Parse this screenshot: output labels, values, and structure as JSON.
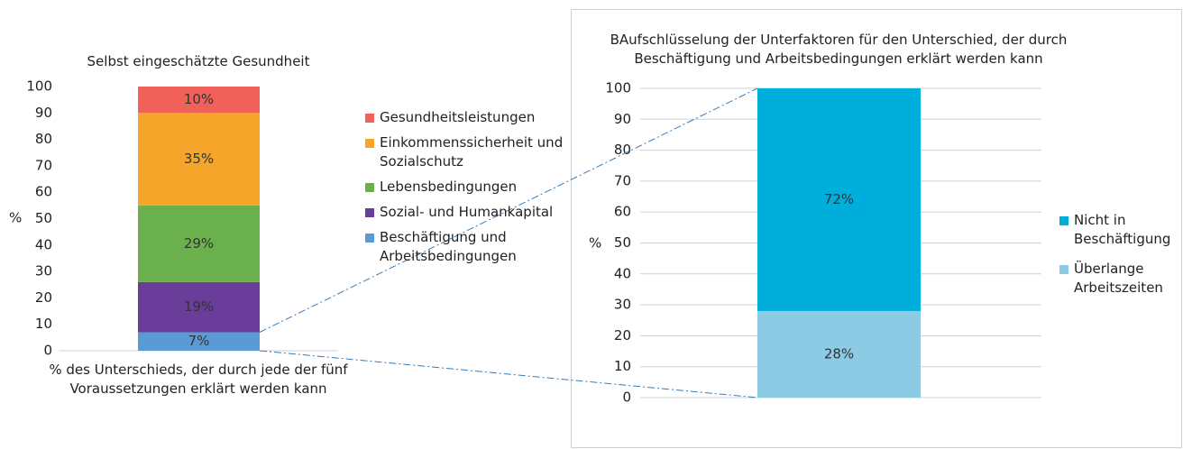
{
  "chart_data": [
    {
      "type": "stacked_bar",
      "title": "Selbst eingeschätzte Gesundheit",
      "y_label": "%",
      "x_label": "% des Unterschieds, der durch jede der fünf Voraussetzungen erklärt werden kann",
      "categories": [
        null
      ],
      "series": [
        {
          "name": "Beschäftigung und Arbeitsbedingungen",
          "color": "#5b9bd5",
          "values": [
            7
          ],
          "value_labels": [
            "7%"
          ]
        },
        {
          "name": "Sozial- und Humankapital",
          "color": "#6a3d9a",
          "values": [
            19
          ],
          "value_labels": [
            "19%"
          ]
        },
        {
          "name": "Lebensbedingungen",
          "color": "#6ab04c",
          "values": [
            29
          ],
          "value_labels": [
            "29%"
          ]
        },
        {
          "name": "Einkommenssicherheit und Sozialschutz",
          "color": "#f5a52a",
          "values": [
            35
          ],
          "value_labels": [
            "35%"
          ]
        },
        {
          "name": "Gesundheitsleistungen",
          "color": "#f0615a",
          "values": [
            10
          ],
          "value_labels": [
            "10%"
          ]
        }
      ],
      "ylim": [
        0,
        100
      ],
      "yticks": [
        0,
        10,
        20,
        30,
        40,
        50,
        60,
        70,
        80,
        90,
        100
      ],
      "grid": false
    },
    {
      "type": "stacked_bar",
      "title": "BAufschlüsselung der Unterfaktoren für den Unterschied, der durch Beschäftigung und Arbeitsbedingungen erklärt werden kann",
      "y_label": "%",
      "categories": [
        null
      ],
      "series": [
        {
          "name": "Überlange Arbeitszeiten",
          "color": "#8ccbe3",
          "values": [
            28
          ],
          "value_labels": [
            "28%"
          ]
        },
        {
          "name": "Nicht in Beschäftigung",
          "color": "#00aedc",
          "values": [
            72
          ],
          "value_labels": [
            "72%"
          ]
        }
      ],
      "ylim": [
        0,
        100
      ],
      "yticks": [
        0,
        10,
        20,
        30,
        40,
        50,
        60,
        70,
        80,
        90,
        100
      ],
      "grid": true
    }
  ]
}
